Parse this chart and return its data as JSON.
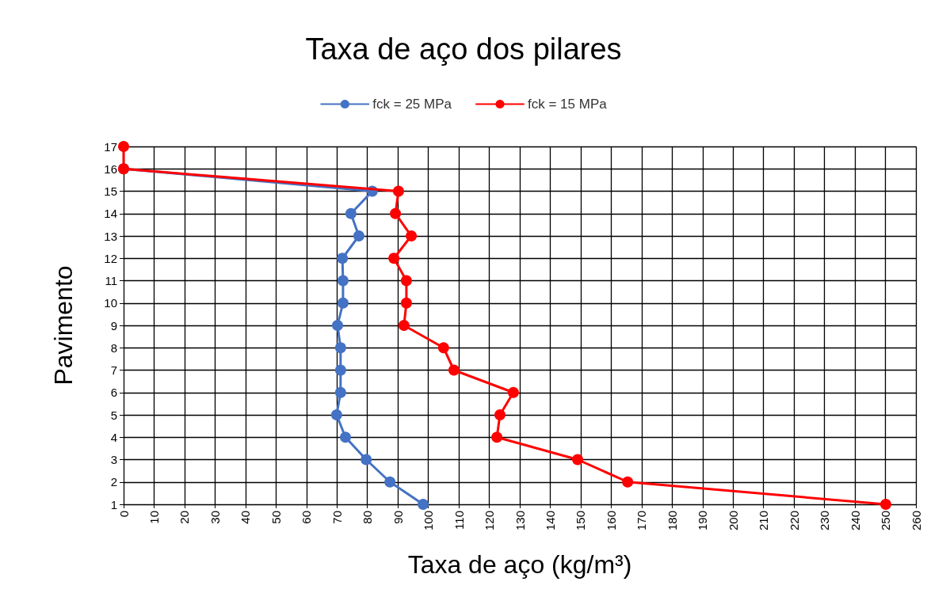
{
  "chart_data": {
    "type": "line",
    "title": "Taxa de aço dos pilares",
    "xlabel": "Taxa de aço (kg/m³)",
    "ylabel": "Pavimento",
    "orientation": "horizontal",
    "categories": [
      "17",
      "16",
      "15",
      "14",
      "13",
      "12",
      "11",
      "10",
      "9",
      "8",
      "7",
      "6",
      "5",
      "4",
      "3",
      "2",
      "1"
    ],
    "series": [
      {
        "name": "fck = 25 MPa",
        "color": "#4472c4",
        "values": [
          null,
          0,
          81.6,
          74.6,
          77.2,
          71.8,
          72,
          72,
          70.2,
          71.2,
          71.2,
          71.2,
          69.9,
          72.8,
          79.6,
          87.4,
          98.3
        ]
      },
      {
        "name": "fck = 15 MPa",
        "color": "#ff0000",
        "values": [
          0,
          0,
          90.2,
          89.2,
          94.4,
          88.7,
          92.8,
          92.8,
          92,
          105,
          108.4,
          127.9,
          123.5,
          122.5,
          149,
          165.4,
          250.1
        ]
      }
    ],
    "xlim": [
      0,
      260
    ],
    "xticks": [
      0,
      10,
      20,
      30,
      40,
      50,
      60,
      70,
      80,
      90,
      100,
      110,
      120,
      130,
      140,
      150,
      160,
      170,
      180,
      190,
      200,
      210,
      220,
      230,
      240,
      250,
      260
    ],
    "grid": true,
    "legend": "top",
    "marker": "circle",
    "line_style": "solid"
  }
}
